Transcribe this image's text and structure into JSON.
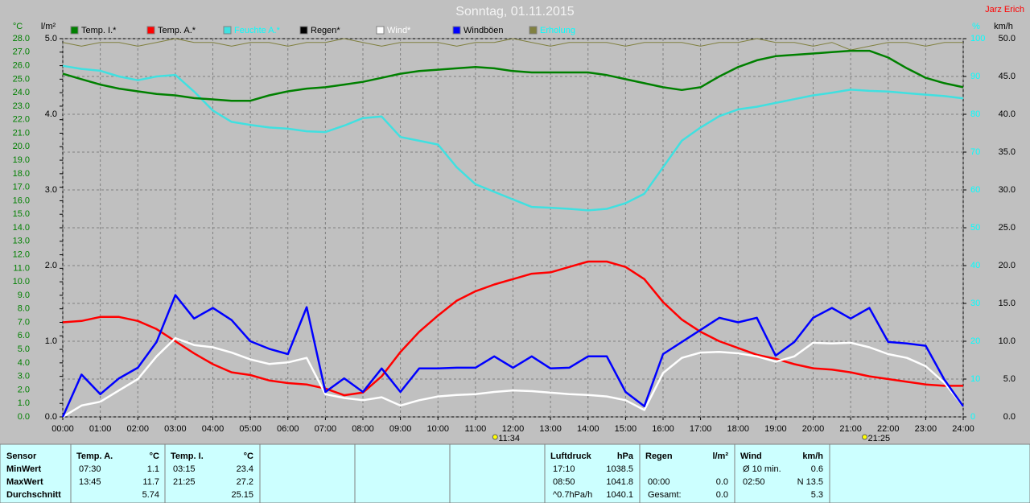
{
  "chart_data": {
    "type": "line",
    "title": "Sonntag, 01.11.2015",
    "corner_text": "Jarz Erich",
    "ylabel": "°C",
    "y2label": "%",
    "y3label": "km/h",
    "y4label": "l/m²",
    "xlim": [
      "00:00",
      "24:00"
    ],
    "xticks": [
      "00:00",
      "01:00",
      "02:00",
      "03:00",
      "04:00",
      "05:00",
      "06:00",
      "07:00",
      "08:00",
      "09:00",
      "10:00",
      "11:00",
      "12:00",
      "13:00",
      "14:00",
      "15:00",
      "16:00",
      "17:00",
      "18:00",
      "19:00",
      "20:00",
      "21:00",
      "22:00",
      "23:00",
      "24:00"
    ],
    "ylim": [
      0,
      28
    ],
    "yticks": [
      {
        "value": 0,
        "label": "0.0"
      },
      {
        "value": 1,
        "label": "1.0"
      },
      {
        "value": 2,
        "label": "2.0"
      },
      {
        "value": 3,
        "label": "3.0"
      },
      {
        "value": 4,
        "label": "4.0"
      },
      {
        "value": 5,
        "label": "5.0"
      },
      {
        "value": 6,
        "label": "6.0"
      },
      {
        "value": 7,
        "label": "7.0"
      },
      {
        "value": 8,
        "label": "8.0"
      },
      {
        "value": 9,
        "label": "9.0"
      },
      {
        "value": 10,
        "label": "10.0"
      },
      {
        "value": 11,
        "label": "11.0"
      },
      {
        "value": 12,
        "label": "12.0"
      },
      {
        "value": 13,
        "label": "13.0"
      },
      {
        "value": 14,
        "label": "14.0"
      },
      {
        "value": 15,
        "label": "15.0"
      },
      {
        "value": 16,
        "label": "16.0"
      },
      {
        "value": 17,
        "label": "17.0"
      },
      {
        "value": 18,
        "label": "18.0"
      },
      {
        "value": 19,
        "label": "19.0"
      },
      {
        "value": 20,
        "label": "20.0"
      },
      {
        "value": 21,
        "label": "21.0"
      },
      {
        "value": 22,
        "label": "22.0"
      },
      {
        "value": 23,
        "label": "23.0"
      },
      {
        "value": 24,
        "label": "24.0"
      },
      {
        "value": 25,
        "label": "25.0"
      },
      {
        "value": 26,
        "label": "26.0"
      },
      {
        "value": 27,
        "label": "27.0"
      },
      {
        "value": 28,
        "label": "28.0"
      }
    ],
    "y2lim": [
      0,
      100
    ],
    "y2ticks": [
      0,
      10,
      20,
      30,
      40,
      50,
      60,
      70,
      80,
      90,
      100
    ],
    "y3lim": [
      0,
      50
    ],
    "y3ticks": [
      {
        "value": 0,
        "label": "0.0"
      },
      {
        "value": 5,
        "label": "5.0"
      },
      {
        "value": 10,
        "label": "10.0"
      },
      {
        "value": 15,
        "label": "15.0"
      },
      {
        "value": 20,
        "label": "20.0"
      },
      {
        "value": 25,
        "label": "25.0"
      },
      {
        "value": 30,
        "label": "30.0"
      },
      {
        "value": 35,
        "label": "35.0"
      },
      {
        "value": 40,
        "label": "40.0"
      },
      {
        "value": 45,
        "label": "45.0"
      },
      {
        "value": 50,
        "label": "50.0"
      }
    ],
    "y4lim": [
      0,
      5
    ],
    "y4ticks": [
      {
        "value": 0,
        "label": "0.0"
      },
      {
        "value": 1,
        "label": "1.0"
      },
      {
        "value": 2,
        "label": "2.0"
      },
      {
        "value": 3,
        "label": "3.0"
      },
      {
        "value": 4,
        "label": "4.0"
      },
      {
        "value": 5,
        "label": "5.0"
      }
    ],
    "grid": true,
    "x": [
      "00:00",
      "00:30",
      "01:00",
      "01:30",
      "02:00",
      "02:30",
      "03:00",
      "03:30",
      "04:00",
      "04:30",
      "05:00",
      "05:30",
      "06:00",
      "06:30",
      "07:00",
      "07:30",
      "08:00",
      "08:30",
      "09:00",
      "09:30",
      "10:00",
      "10:30",
      "11:00",
      "11:30",
      "12:00",
      "12:30",
      "13:00",
      "13:30",
      "14:00",
      "14:30",
      "15:00",
      "15:30",
      "16:00",
      "16:30",
      "17:00",
      "17:30",
      "18:00",
      "18:30",
      "19:00",
      "19:30",
      "20:00",
      "20:30",
      "21:00",
      "21:30",
      "22:00",
      "22:30",
      "23:00",
      "23:30",
      "24:00"
    ],
    "series": [
      {
        "name": "Temp. I.*",
        "color": "#008000",
        "text_color": "#000000",
        "axis": "y",
        "values": [
          25.4,
          25.0,
          24.6,
          24.3,
          24.1,
          23.9,
          23.8,
          23.6,
          23.5,
          23.4,
          23.4,
          23.8,
          24.1,
          24.3,
          24.4,
          24.6,
          24.8,
          25.1,
          25.4,
          25.6,
          25.7,
          25.8,
          25.9,
          25.8,
          25.6,
          25.5,
          25.5,
          25.5,
          25.5,
          25.3,
          25.0,
          24.7,
          24.4,
          24.2,
          24.4,
          25.2,
          25.9,
          26.4,
          26.7,
          26.8,
          26.9,
          27.0,
          27.1,
          27.1,
          26.6,
          25.8,
          25.1,
          24.7,
          24.4
        ]
      },
      {
        "name": "Temp. A.*",
        "color": "#ff0000",
        "text_color": "#000000",
        "axis": "y",
        "values": [
          7.0,
          7.1,
          7.4,
          7.4,
          7.1,
          6.5,
          5.6,
          4.7,
          3.9,
          3.3,
          3.1,
          2.7,
          2.5,
          2.4,
          2.1,
          1.6,
          1.8,
          3.0,
          4.8,
          6.3,
          7.5,
          8.6,
          9.3,
          9.8,
          10.2,
          10.6,
          10.7,
          11.1,
          11.5,
          11.5,
          11.1,
          10.2,
          8.5,
          7.2,
          6.3,
          5.6,
          5.1,
          4.6,
          4.3,
          3.9,
          3.6,
          3.5,
          3.3,
          3.0,
          2.8,
          2.6,
          2.4,
          2.3,
          2.3
        ]
      },
      {
        "name": "Feuchte A.*",
        "color": "#40e0e0",
        "text_color": "#00ffff",
        "axis": "y2",
        "values": [
          92.8,
          92,
          91.5,
          90,
          89,
          90,
          90.4,
          86,
          81,
          78,
          77.2,
          76.5,
          76.2,
          75.5,
          75.3,
          77,
          79,
          79.4,
          74,
          73,
          72,
          66,
          61.5,
          59.5,
          57.5,
          55.5,
          55.3,
          55,
          54.6,
          55,
          56.5,
          59,
          66,
          73,
          76.5,
          79.5,
          81.3,
          82,
          83,
          84,
          85,
          85.7,
          86.5,
          86.2,
          86,
          85.6,
          85.2,
          84.8,
          84.2
        ]
      },
      {
        "name": "Regen*",
        "color": "#000000",
        "text_color": "#000000"
      },
      {
        "name": "Wind*",
        "color": "#ffffff",
        "text_color": "#ffffff",
        "axis": "y3",
        "values": [
          0,
          1.5,
          2.0,
          3.5,
          5.0,
          8.0,
          10.4,
          9.5,
          9.2,
          8.5,
          7.6,
          7.0,
          7.2,
          7.8,
          3.0,
          2.5,
          2.2,
          2.6,
          1.5,
          2.2,
          2.7,
          2.9,
          3.0,
          3.3,
          3.5,
          3.4,
          3.2,
          3.0,
          2.9,
          2.7,
          2.2,
          0.9,
          5.8,
          7.8,
          8.5,
          8.6,
          8.4,
          8.0,
          7.3,
          8.0,
          9.8,
          9.7,
          9.8,
          9.2,
          8.3,
          7.8,
          6.7,
          4.5,
          1.4
        ]
      },
      {
        "name": "Windböen",
        "color": "#0000ff",
        "text_color": "#000000",
        "axis": "y3",
        "values": [
          0,
          5.6,
          3.0,
          5.1,
          6.5,
          9.9,
          16.1,
          13.0,
          14.4,
          12.8,
          10.0,
          9.0,
          8.3,
          14.5,
          3.3,
          5.1,
          3.3,
          6.4,
          3.3,
          6.4,
          6.4,
          6.5,
          6.5,
          8.0,
          6.5,
          8.0,
          6.4,
          6.5,
          8.0,
          8.0,
          3.3,
          1.4,
          8.3,
          9.9,
          11.5,
          13.1,
          12.5,
          13.1,
          8.1,
          9.9,
          13.1,
          14.4,
          13.0,
          14.4,
          9.9,
          9.7,
          9.4,
          4.9,
          1.4
        ]
      },
      {
        "name": "Erholung",
        "color": "#808040",
        "text_color": "#00ffff",
        "axis": "y2",
        "values": [
          99,
          98,
          99,
          99,
          98,
          99,
          100,
          99,
          99,
          98,
          99,
          99,
          98,
          99,
          99,
          100,
          99,
          98,
          99,
          99,
          99,
          98,
          99,
          99,
          100,
          99,
          98,
          99,
          99,
          99,
          98,
          99,
          99,
          99,
          98,
          99,
          99,
          100,
          99,
          99,
          98,
          99,
          97,
          98,
          99,
          99,
          98,
          99,
          99
        ]
      }
    ],
    "annotations": [
      "11:34",
      "21:25"
    ]
  },
  "summary": {
    "row_labels": [
      "Sensor",
      "MinWert",
      "MaxWert",
      "Durchschnitt"
    ],
    "sections": [
      {
        "title": "Temp. A.",
        "unit": "°C",
        "rows": [
          [
            "07:30",
            "1.1"
          ],
          [
            "13:45",
            "11.7"
          ],
          [
            null,
            "5.74"
          ]
        ]
      },
      {
        "title": "Temp. I.",
        "unit": "°C",
        "rows": [
          [
            "03:15",
            "23.4"
          ],
          [
            "21:25",
            "27.2"
          ],
          [
            null,
            "25.15"
          ]
        ]
      },
      {
        "title": "Luftdruck",
        "unit": "hPa",
        "rows": [
          [
            "17:10",
            "1038.5"
          ],
          [
            "08:50",
            "1041.8"
          ],
          [
            "^0.7hPa/h",
            "1040.1"
          ]
        ]
      },
      {
        "title": "Regen",
        "unit": "l/m²",
        "rows": [
          [
            null,
            null
          ],
          [
            "00:00",
            "0.0"
          ],
          [
            "Gesamt:",
            "0.0"
          ]
        ]
      },
      {
        "title": "Wind",
        "unit": "km/h",
        "rows": [
          [
            "Ø 10 min.",
            "0.6"
          ],
          [
            "02:50",
            "N 13.5"
          ],
          [
            null,
            "5.3"
          ]
        ]
      }
    ]
  }
}
